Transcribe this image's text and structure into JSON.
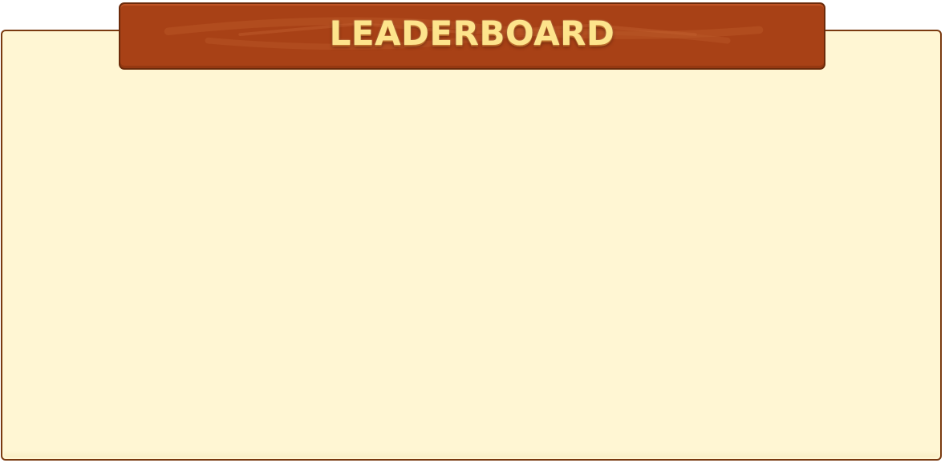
{
  "leaderboard": {
    "title": "LEADERBOARD",
    "entries": []
  },
  "colors": {
    "banner": "#a84116",
    "banner_border": "#6b2a0a",
    "title_text": "#fde48c",
    "panel_background": "#fff6d3",
    "panel_border": "#7a3a10"
  }
}
